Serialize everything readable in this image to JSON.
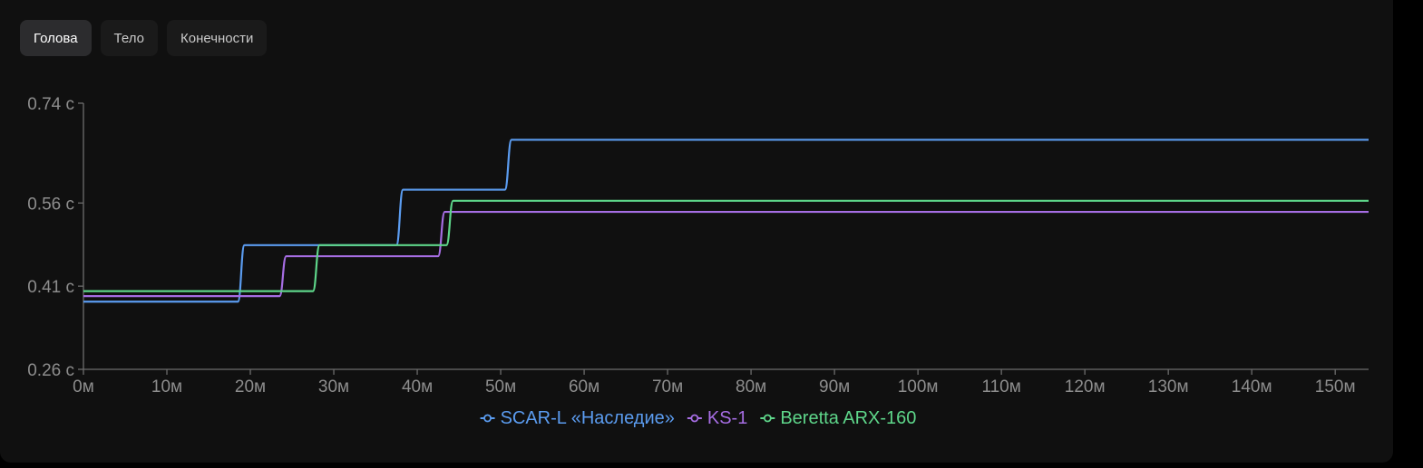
{
  "tabs": [
    {
      "label": "Голова",
      "active": true
    },
    {
      "label": "Тело",
      "active": false
    },
    {
      "label": "Конечности",
      "active": false
    }
  ],
  "chart_data": {
    "type": "line",
    "step": true,
    "xlim": [
      0,
      154
    ],
    "ylim": [
      0.26,
      0.74
    ],
    "x_ticks": [
      0,
      10,
      20,
      30,
      40,
      50,
      60,
      70,
      80,
      90,
      100,
      110,
      120,
      130,
      140,
      150
    ],
    "x_tick_labels": [
      "0м",
      "10м",
      "20м",
      "30м",
      "40м",
      "50м",
      "60м",
      "70м",
      "80м",
      "90м",
      "100м",
      "110м",
      "120м",
      "130м",
      "140м",
      "150м"
    ],
    "y_ticks": [
      0.26,
      0.41,
      0.56,
      0.74
    ],
    "y_tick_labels": [
      "0.26 с",
      "0.41 с",
      "0.56 с",
      "0.74 с"
    ],
    "grid": false,
    "legend_position": "bottom-center",
    "series": [
      {
        "name": "SCAR-L «Наследие»",
        "color": "#5b9cf0",
        "x": [
          0,
          18.5,
          37.5,
          50.5,
          154
        ],
        "y": [
          0.382,
          0.484,
          0.584,
          0.674,
          0.674
        ]
      },
      {
        "name": "KS-1",
        "color": "#a66de3",
        "x": [
          0,
          23.5,
          42.5,
          154
        ],
        "y": [
          0.392,
          0.464,
          0.544,
          0.544
        ]
      },
      {
        "name": "Beretta ARX-160",
        "color": "#5ed68a",
        "x": [
          0,
          27.5,
          43.5,
          154
        ],
        "y": [
          0.401,
          0.484,
          0.564,
          0.564
        ]
      }
    ]
  }
}
